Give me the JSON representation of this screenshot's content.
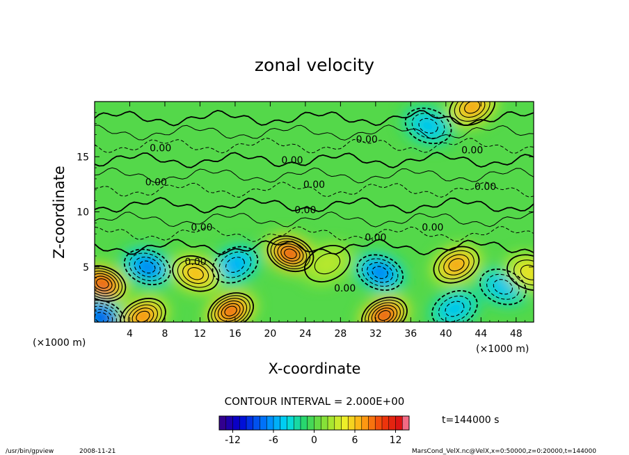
{
  "chart_data": {
    "type": "heatmap",
    "title": "zonal velocity",
    "xlabel": "X-coordinate",
    "ylabel": "Z-coordinate",
    "x_unit_left": "(×1000 m)",
    "x_unit_right": "(×1000 m)",
    "xlim": [
      0,
      50
    ],
    "ylim": [
      0,
      20
    ],
    "x_ticks": [
      "4",
      "8",
      "12",
      "16",
      "20",
      "24",
      "28",
      "32",
      "36",
      "40",
      "44",
      "48"
    ],
    "y_ticks": [
      "5",
      "10",
      "15"
    ],
    "contour_interval_label": "CONTOUR INTERVAL = 2.000E+00",
    "contour_labels": [
      {
        "text": "0.00",
        "x": 7.5,
        "z": 15.8
      },
      {
        "text": "0.00",
        "x": 7.0,
        "z": 12.7
      },
      {
        "text": "0.00",
        "x": 12.2,
        "z": 8.6
      },
      {
        "text": "0.00",
        "x": 11.5,
        "z": 5.5
      },
      {
        "text": "0.00",
        "x": 22.5,
        "z": 14.7
      },
      {
        "text": "0.00",
        "x": 25.0,
        "z": 12.5
      },
      {
        "text": "0.00",
        "x": 24.0,
        "z": 10.2
      },
      {
        "text": "0.00",
        "x": 31.0,
        "z": 16.6
      },
      {
        "text": "0.00",
        "x": 32.0,
        "z": 7.7
      },
      {
        "text": "0.00",
        "x": 28.5,
        "z": 3.1
      },
      {
        "text": "0.00",
        "x": 38.5,
        "z": 8.6
      },
      {
        "text": "0.00",
        "x": 43.0,
        "z": 15.6
      },
      {
        "text": "0.00",
        "x": 44.5,
        "z": 12.3
      }
    ],
    "colorbar": {
      "min": -14,
      "max": 14,
      "ticks": [
        "-12",
        "-6",
        "0",
        "6",
        "12"
      ],
      "tick_values": [
        -12,
        -6,
        0,
        6,
        12
      ]
    },
    "time_label": "t=144000 s",
    "features": [
      {
        "x": 22.3,
        "z": 6.2,
        "value": 12
      },
      {
        "x": 41.2,
        "z": 5.2,
        "value": 8
      },
      {
        "x": 6.0,
        "z": 5.0,
        "value": -8
      },
      {
        "x": 16.0,
        "z": 5.2,
        "value": -6
      },
      {
        "x": 32.5,
        "z": 4.5,
        "value": -8
      },
      {
        "x": 33.0,
        "z": 0.6,
        "value": 12
      },
      {
        "x": 0.9,
        "z": 3.5,
        "value": 12
      },
      {
        "x": 15.5,
        "z": 1.0,
        "value": 11
      },
      {
        "x": 0.8,
        "z": 0.4,
        "value": -10
      },
      {
        "x": 5.5,
        "z": 0.5,
        "value": 9
      },
      {
        "x": 11.5,
        "z": 4.4,
        "value": 7
      },
      {
        "x": 41.0,
        "z": 1.2,
        "value": -5
      },
      {
        "x": 46.5,
        "z": 3.2,
        "value": -5
      },
      {
        "x": 43.0,
        "z": 19.5,
        "value": 8
      },
      {
        "x": 38.0,
        "z": 17.8,
        "value": -5
      },
      {
        "x": 26.5,
        "z": 5.3,
        "value": 3
      },
      {
        "x": 49.6,
        "z": 4.5,
        "value": 5
      }
    ]
  },
  "footer": {
    "program": "/usr/bin/gpview",
    "date": "2008-11-21",
    "source": "MarsCond_VelX.nc@VelX,x=0:50000,z=0:20000,t=144000"
  }
}
